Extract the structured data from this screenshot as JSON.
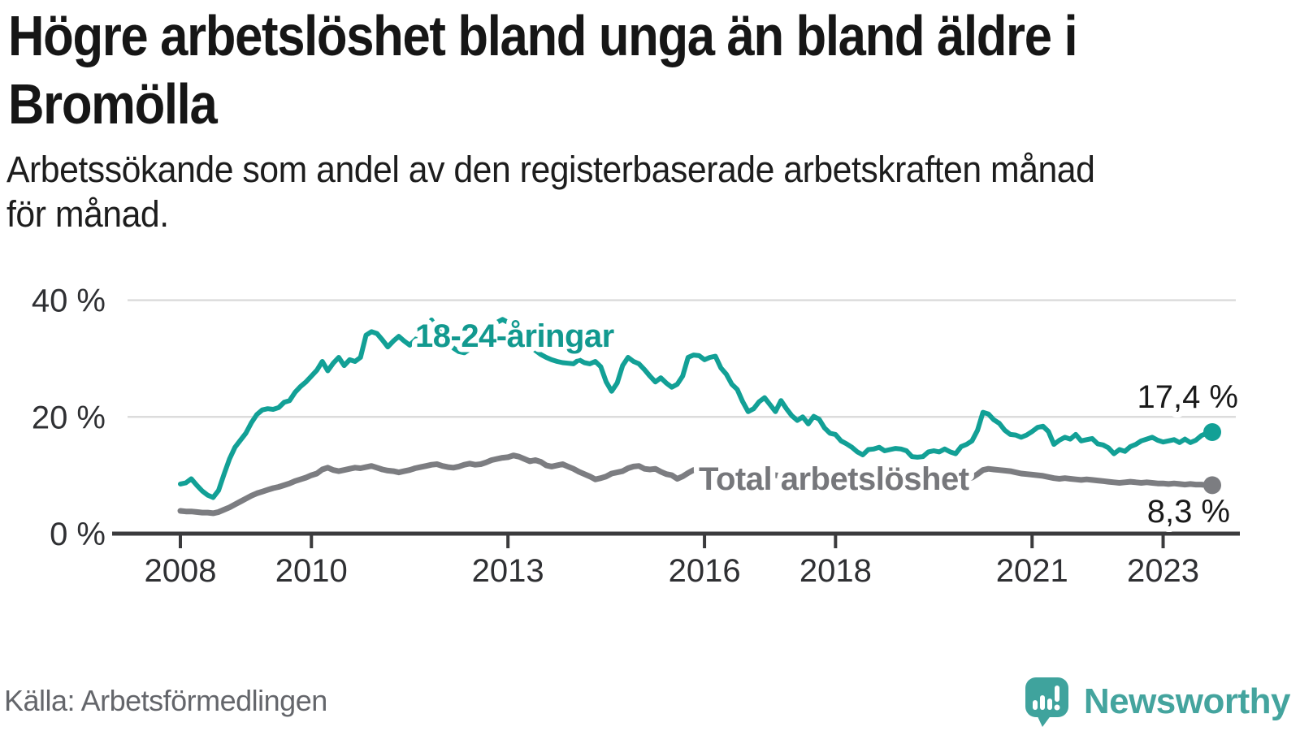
{
  "header": {
    "title_line1": "Högre arbetslöshet bland unga än bland äldre i",
    "title_line2": "Bromölla",
    "subtitle_line1": "Arbetssökande som andel av den registerbaserade arbetskraften månad",
    "subtitle_line2": "för månad."
  },
  "footer": {
    "source": "Källa: Arbetsförmedlingen",
    "logo_text": "Newsworthy"
  },
  "colors": {
    "youth_line": "#12A096",
    "youth_label": "#12998F",
    "total_line": "#7C7D81",
    "total_label": "#76777B",
    "grid": "#dcdcdc",
    "axis": "#3b3b3d",
    "logo_teal": "#3fa39d"
  },
  "chart_data": {
    "type": "line",
    "title": "Högre arbetslöshet bland unga än bland äldre i Bromölla",
    "subtitle": "Arbetssökande som andel av den registerbaserade arbetskraften månad för månad.",
    "x_unit": "month",
    "x_start": "2008-01",
    "x_end": "2023-10",
    "x_ticks": [
      2008,
      2010,
      2013,
      2016,
      2018,
      2021,
      2023
    ],
    "y_ticks": [
      {
        "v": 0,
        "label": "0 %"
      },
      {
        "v": 20,
        "label": "20 %"
      },
      {
        "v": 40,
        "label": "40 %"
      }
    ],
    "ylim": [
      0,
      42
    ],
    "grid": true,
    "legend_position": "inline-labels",
    "series": [
      {
        "name": "18-24-åringar",
        "end_label": "17,4 %",
        "end_value": 17.4,
        "values": [
          8.5,
          8.7,
          9.4,
          8.3,
          7.3,
          6.6,
          6.2,
          7.4,
          10.2,
          12.8,
          14.8,
          16.0,
          17.2,
          19.0,
          20.4,
          21.2,
          21.4,
          21.3,
          21.6,
          22.5,
          22.8,
          24.2,
          25.2,
          26.0,
          27.0,
          28.0,
          29.5,
          27.9,
          29.2,
          30.2,
          28.8,
          29.8,
          29.5,
          30.2,
          34.0,
          34.6,
          34.3,
          33.2,
          32.0,
          33.0,
          33.8,
          33.0,
          32.3,
          33.2,
          34.2,
          35.3,
          36.6,
          35.2,
          34.0,
          32.8,
          31.8,
          31.2,
          31.0,
          31.6,
          32.3,
          33.2,
          34.2,
          35.2,
          36.2,
          36.7,
          36.2,
          35.2,
          34.2,
          33.2,
          32.2,
          31.4,
          30.7,
          30.2,
          29.8,
          29.5,
          29.3,
          29.2,
          29.1,
          29.8,
          29.3,
          29.1,
          29.5,
          28.6,
          26.0,
          24.4,
          25.8,
          28.8,
          30.2,
          29.5,
          29.1,
          28.1,
          27.0,
          26.0,
          26.7,
          25.8,
          25.1,
          25.6,
          27.0,
          30.2,
          30.6,
          30.5,
          29.8,
          30.2,
          30.4,
          28.4,
          27.3,
          25.6,
          24.7,
          22.6,
          20.9,
          21.4,
          22.6,
          23.3,
          22.1,
          20.9,
          22.8,
          21.4,
          20.2,
          19.4,
          20.0,
          18.8,
          20.1,
          19.6,
          18.1,
          17.2,
          17.0,
          15.9,
          15.4,
          14.8,
          14.0,
          13.5,
          14.4,
          14.5,
          14.8,
          14.2,
          14.4,
          14.6,
          14.5,
          14.2,
          13.2,
          13.1,
          13.2,
          14.0,
          14.2,
          14.0,
          14.5,
          14.0,
          13.7,
          14.9,
          15.3,
          15.9,
          17.7,
          20.8,
          20.5,
          19.5,
          18.9,
          17.7,
          17.0,
          16.9,
          16.5,
          16.9,
          17.5,
          18.2,
          18.4,
          17.5,
          15.3,
          16.0,
          16.5,
          16.2,
          17.0,
          15.9,
          16.1,
          16.3,
          15.4,
          15.2,
          14.7,
          13.7,
          14.4,
          14.1,
          14.9,
          15.3,
          15.9,
          16.2,
          16.5,
          16.0,
          15.7,
          15.9,
          16.1,
          15.6,
          16.2,
          15.6,
          16.0,
          16.8,
          17.2,
          17.4
        ]
      },
      {
        "name": "Total arbetslöshet",
        "end_label": "8,3 %",
        "end_value": 8.3,
        "values": [
          3.9,
          3.8,
          3.8,
          3.7,
          3.6,
          3.6,
          3.5,
          3.7,
          4.1,
          4.5,
          5.0,
          5.5,
          6.0,
          6.5,
          6.9,
          7.2,
          7.5,
          7.8,
          8.0,
          8.3,
          8.6,
          9.0,
          9.3,
          9.6,
          10.0,
          10.3,
          11.0,
          11.3,
          10.9,
          10.7,
          10.9,
          11.1,
          11.3,
          11.2,
          11.4,
          11.6,
          11.3,
          11.0,
          10.8,
          10.7,
          10.5,
          10.7,
          10.9,
          11.2,
          11.4,
          11.6,
          11.8,
          11.9,
          11.6,
          11.4,
          11.3,
          11.5,
          11.8,
          12.0,
          11.8,
          11.9,
          12.2,
          12.6,
          12.8,
          13.0,
          13.1,
          13.4,
          13.2,
          12.8,
          12.4,
          12.6,
          12.3,
          11.7,
          11.5,
          11.7,
          11.9,
          11.5,
          11.1,
          10.6,
          10.2,
          9.8,
          9.3,
          9.5,
          9.8,
          10.3,
          10.5,
          10.7,
          11.2,
          11.5,
          11.6,
          11.1,
          11.0,
          11.1,
          10.6,
          10.2,
          10.0,
          9.4,
          9.8,
          10.4,
          10.9,
          11.0,
          11.1,
          11.0,
          10.9,
          10.7,
          10.5,
          10.4,
          10.5,
          10.4,
          10.2,
          10.1,
          10.2,
          10.3,
          10.2,
          10.0,
          9.9,
          9.8,
          9.7,
          9.8,
          9.9,
          9.8,
          9.7,
          9.6,
          9.5,
          9.6,
          9.7,
          9.6,
          9.7,
          9.5,
          9.3,
          9.2,
          9.3,
          9.2,
          9.1,
          9.0,
          9.0,
          9.1,
          9.2,
          9.1,
          9.0,
          8.9,
          8.8,
          8.9,
          9.0,
          8.9,
          8.8,
          8.9,
          9.0,
          9.2,
          9.4,
          9.6,
          10.2,
          10.9,
          11.1,
          11.0,
          10.9,
          10.8,
          10.7,
          10.5,
          10.3,
          10.2,
          10.1,
          10.0,
          9.9,
          9.7,
          9.5,
          9.4,
          9.5,
          9.4,
          9.3,
          9.2,
          9.3,
          9.2,
          9.1,
          9.0,
          8.9,
          8.8,
          8.7,
          8.8,
          8.9,
          8.8,
          8.7,
          8.8,
          8.7,
          8.6,
          8.6,
          8.5,
          8.6,
          8.5,
          8.4,
          8.5,
          8.4,
          8.4,
          8.3,
          8.3
        ]
      }
    ]
  }
}
